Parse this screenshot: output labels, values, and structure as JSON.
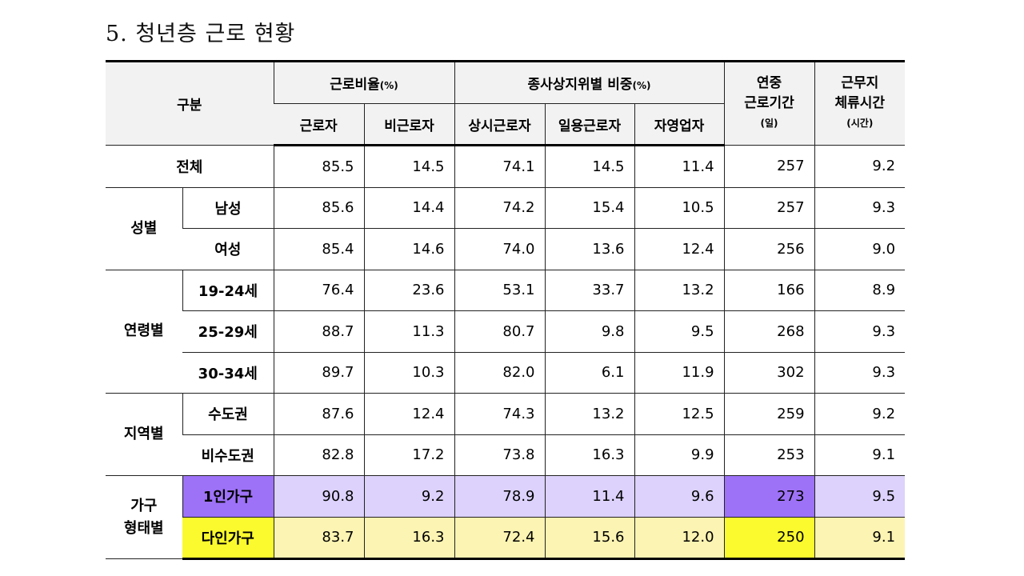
{
  "title": "5. 청년층 근로 현황",
  "header": {
    "category": "구분",
    "work_rate": "근로비율",
    "work_rate_unit": "(%)",
    "status_share": "종사상지위별 비중",
    "status_share_unit": "(%)",
    "annual_days_line1": "연중",
    "annual_days_line2": "근로기간",
    "annual_days_unit": "(일)",
    "stay_hours_line1": "근무지",
    "stay_hours_line2": "체류시간",
    "stay_hours_unit": "(시간)",
    "worker": "근로자",
    "non_worker": "비근로자",
    "regular": "상시근로자",
    "daily": "일용근로자",
    "self_employed": "자영업자"
  },
  "groups": {
    "sex": "성별",
    "age": "연령별",
    "region": "지역별",
    "household_line1": "가구",
    "household_line2": "형태별"
  },
  "rows": [
    {
      "label": "전체",
      "values": [
        "85.5",
        "14.5",
        "74.1",
        "14.5",
        "11.4",
        "257",
        "9.2"
      ]
    },
    {
      "label": "남성",
      "values": [
        "85.6",
        "14.4",
        "74.2",
        "15.4",
        "10.5",
        "257",
        "9.3"
      ]
    },
    {
      "label": "여성",
      "values": [
        "85.4",
        "14.6",
        "74.0",
        "13.6",
        "12.4",
        "256",
        "9.0"
      ]
    },
    {
      "label": "19-24세",
      "values": [
        "76.4",
        "23.6",
        "53.1",
        "33.7",
        "13.2",
        "166",
        "8.9"
      ]
    },
    {
      "label": "25-29세",
      "values": [
        "88.7",
        "11.3",
        "80.7",
        "9.8",
        "9.5",
        "268",
        "9.3"
      ]
    },
    {
      "label": "30-34세",
      "values": [
        "89.7",
        "10.3",
        "82.0",
        "6.1",
        "11.9",
        "302",
        "9.3"
      ]
    },
    {
      "label": "수도권",
      "values": [
        "87.6",
        "12.4",
        "74.3",
        "13.2",
        "12.5",
        "259",
        "9.2"
      ]
    },
    {
      "label": "비수도권",
      "values": [
        "82.8",
        "17.2",
        "73.8",
        "16.3",
        "9.9",
        "253",
        "9.1"
      ]
    },
    {
      "label": "1인가구",
      "values": [
        "90.8",
        "9.2",
        "78.9",
        "11.4",
        "9.6",
        "273",
        "9.5"
      ]
    },
    {
      "label": "다인가구",
      "values": [
        "83.7",
        "16.3",
        "72.4",
        "15.6",
        "12.0",
        "250",
        "9.1"
      ]
    }
  ],
  "colors": {
    "single_household_light": "#dcd2fb",
    "single_household_strong": "#9d72f7",
    "multi_household_light": "#fcf4b2",
    "multi_household_strong": "#fafa2e",
    "header_bg": "#f2f2f2"
  }
}
